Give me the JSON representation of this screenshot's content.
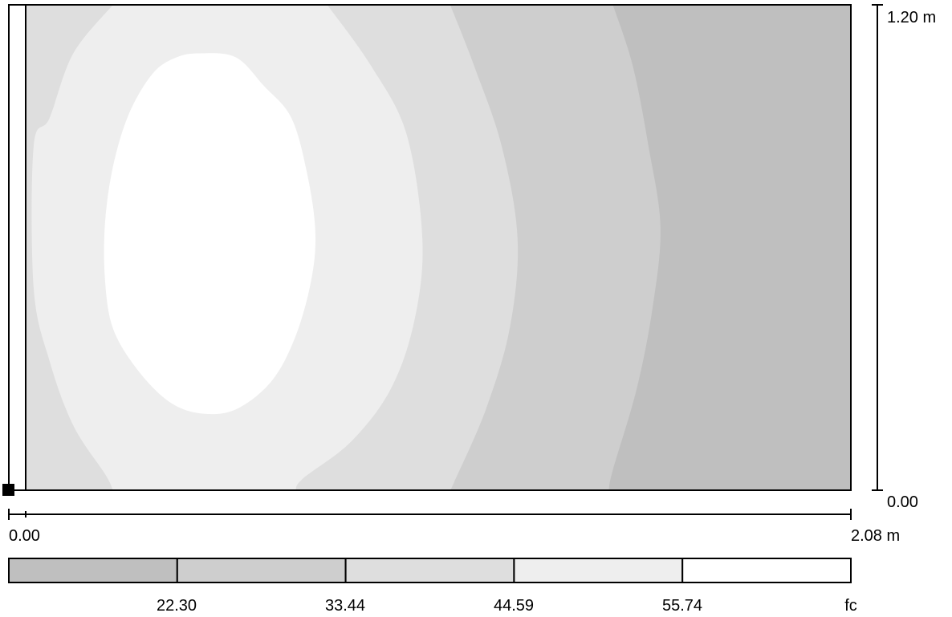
{
  "chart_data": {
    "type": "heatmap",
    "title": "",
    "xlabel": "",
    "ylabel": "",
    "x_axis": {
      "min": 0.0,
      "max": 2.08,
      "min_label": "0.00",
      "max_label": "2.08 m"
    },
    "y_axis": {
      "min": 0.0,
      "max": 1.2,
      "min_label": "0.00",
      "max_label": "1.20 m"
    },
    "unit": "fc",
    "legend_thresholds": [
      "22.30",
      "33.44",
      "44.59",
      "55.74"
    ],
    "legend_colors": [
      "#bfbfbf",
      "#cecece",
      "#dedede",
      "#eeeeee",
      "#ffffff"
    ],
    "contours": [
      {
        "level": 22.3,
        "points": [
          [
            1.48,
            1.2
          ],
          [
            1.53,
            1.05
          ],
          [
            1.57,
            0.85
          ],
          [
            1.6,
            0.65
          ],
          [
            1.58,
            0.45
          ],
          [
            1.54,
            0.25
          ],
          [
            1.48,
            0.05
          ],
          [
            1.47,
            0.0
          ]
        ]
      },
      {
        "level": 33.44,
        "points": [
          [
            1.07,
            1.2
          ],
          [
            1.13,
            1.05
          ],
          [
            1.2,
            0.85
          ],
          [
            1.24,
            0.62
          ],
          [
            1.22,
            0.4
          ],
          [
            1.16,
            0.2
          ],
          [
            1.08,
            0.02
          ],
          [
            1.07,
            0.0
          ]
        ]
      },
      {
        "level": 44.59,
        "points": [
          [
            0.76,
            1.2
          ],
          [
            0.87,
            1.05
          ],
          [
            0.96,
            0.88
          ],
          [
            1.0,
            0.62
          ],
          [
            0.98,
            0.42
          ],
          [
            0.92,
            0.25
          ],
          [
            0.82,
            0.12
          ],
          [
            0.7,
            0.03
          ],
          [
            0.68,
            0.0
          ]
        ]
      },
      {
        "level": 44.59,
        "points": [
          [
            0.22,
            1.2
          ],
          [
            0.12,
            1.08
          ],
          [
            0.06,
            0.92
          ],
          [
            0.02,
            0.85
          ],
          [
            0.02,
            0.5
          ],
          [
            0.06,
            0.32
          ],
          [
            0.12,
            0.16
          ],
          [
            0.2,
            0.04
          ],
          [
            0.22,
            0.0
          ]
        ]
      },
      {
        "level": 55.74,
        "closed": true,
        "points": [
          [
            0.44,
            1.08
          ],
          [
            0.53,
            1.07
          ],
          [
            0.6,
            1.0
          ],
          [
            0.67,
            0.92
          ],
          [
            0.71,
            0.78
          ],
          [
            0.73,
            0.64
          ],
          [
            0.72,
            0.52
          ],
          [
            0.68,
            0.38
          ],
          [
            0.62,
            0.27
          ],
          [
            0.53,
            0.2
          ],
          [
            0.44,
            0.19
          ],
          [
            0.36,
            0.22
          ],
          [
            0.28,
            0.3
          ],
          [
            0.22,
            0.4
          ],
          [
            0.2,
            0.52
          ],
          [
            0.2,
            0.66
          ],
          [
            0.22,
            0.8
          ],
          [
            0.26,
            0.93
          ],
          [
            0.32,
            1.03
          ],
          [
            0.38,
            1.07
          ]
        ]
      }
    ]
  }
}
